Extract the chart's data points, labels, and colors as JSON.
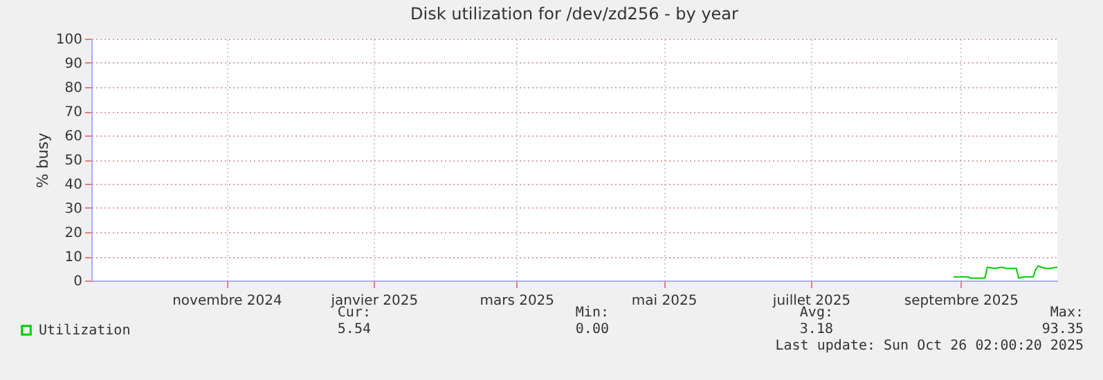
{
  "chart_data": {
    "type": "line",
    "title": "Disk utilization for /dev/zd256 - by year",
    "ylabel": "% busy",
    "xlim": [
      "2024-09-21",
      "2025-10-26"
    ],
    "xticks": [
      {
        "value": "2024-11-16",
        "label": "novembre 2024"
      },
      {
        "value": "2025-01-16",
        "label": "janvier 2025"
      },
      {
        "value": "2025-03-16",
        "label": "mars 2025"
      },
      {
        "value": "2025-05-16",
        "label": "mai 2025"
      },
      {
        "value": "2025-07-16",
        "label": "juillet 2025"
      },
      {
        "value": "2025-09-16",
        "label": "septembre 2025"
      }
    ],
    "ylim": [
      0,
      100
    ],
    "yticks": [
      0,
      10,
      20,
      30,
      40,
      50,
      60,
      70,
      80,
      90,
      100
    ],
    "grid": true,
    "legend": "bottom left",
    "series": [
      {
        "name": "Utilization",
        "color": "#00cc00",
        "x": [
          "2025-09-13",
          "2025-09-19",
          "2025-09-20",
          "2025-09-26",
          "2025-09-27",
          "2025-09-30",
          "2025-10-03",
          "2025-10-05",
          "2025-10-09",
          "2025-10-10",
          "2025-10-12",
          "2025-10-16",
          "2025-10-17",
          "2025-10-18",
          "2025-10-21",
          "2025-10-23",
          "2025-10-26"
        ],
        "values": [
          1.5,
          1.5,
          1,
          1,
          5.5,
          5,
          5.5,
          5,
          5,
          1,
          1.5,
          1.5,
          4.5,
          6,
          5,
          5,
          5.5
        ]
      }
    ],
    "annotations": [
      "Cur:",
      "5.54",
      "Min:",
      "0.00",
      "Avg:",
      "3.18",
      "Max:",
      "93.35",
      "Last update: Sun Oct 26 02:00:20 2025"
    ]
  }
}
